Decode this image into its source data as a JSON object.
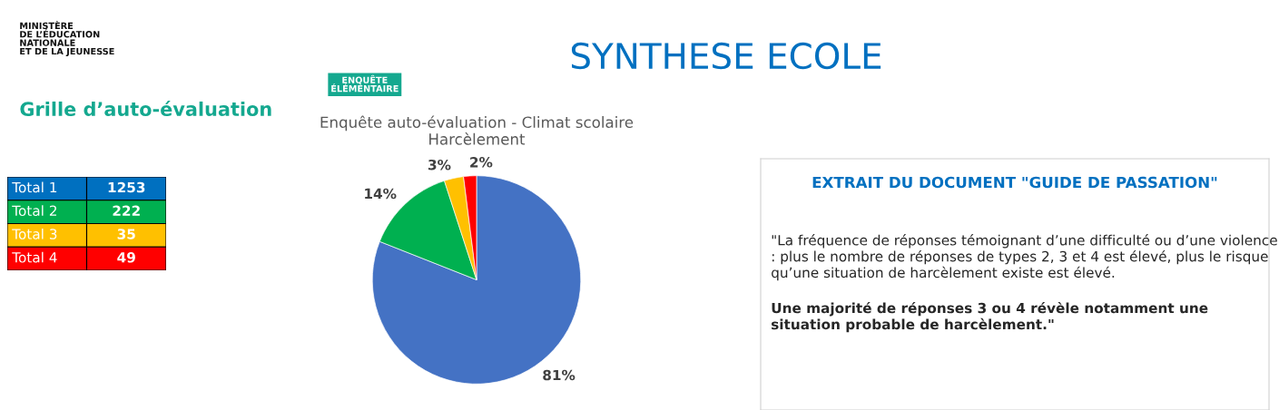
{
  "chart_data": [
    {
      "type": "other",
      "title": "SYNTHESE ECOLE",
      "annotations": [
        "MINISTÈRE\nDE L’ÉDUCATION\nNATIONALE\nET DE LA JEUNESSE",
        "Grille d’auto-évaluation",
        "ENQUÊTE\nÉLÉMENTAIRE"
      ]
    },
    {
      "type": "other",
      "categories": [
        "Total 1",
        "Total 2",
        "Total 3",
        "Total 4"
      ],
      "values": [
        1253,
        222,
        35,
        49
      ],
      "colors": [
        "#0070c0",
        "#00b050",
        "#ffc000",
        "#ff0000"
      ],
      "data_labels": true
    },
    {
      "type": "pie",
      "title": "Enquête auto-évaluation - Climat scolaire",
      "subtitle": "Harcèlement",
      "categories": [
        null,
        null,
        null,
        null
      ],
      "values": [
        81,
        14,
        3,
        2
      ],
      "colors": [
        "#4472c4",
        "#00b050",
        "#ffc000",
        "#ff0000"
      ],
      "value_labels": [
        "81%",
        "14%",
        "3%",
        "2%"
      ],
      "legend": false
    },
    {
      "type": "other",
      "title": "EXTRAIT DU DOCUMENT \"GUIDE DE PASSATION\"",
      "annotations": [
        "\"La fréquence de réponses témoignant d’une difficulté ou d’une violence : plus le nombre de réponses de types 2, 3 et 4 est élevé, plus le risque qu’une situation de harcèlement existe est élevé.",
        "Une majorité de réponses 3 ou 4 révèle notamment une situation probable de harcèlement.\""
      ]
    }
  ]
}
